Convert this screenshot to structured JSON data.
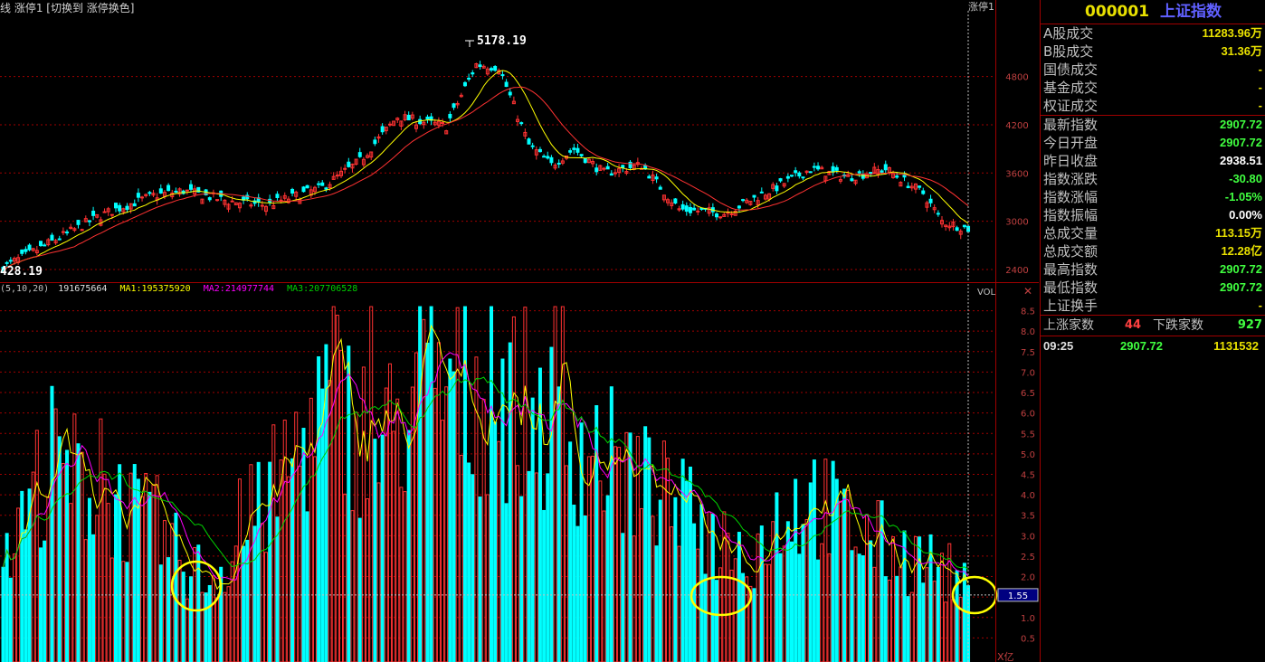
{
  "header": {
    "left_text": "线  涨停1 [切换到 涨停换色]",
    "right_tag": "涨停1"
  },
  "price_chart": {
    "high_label": "5178.19",
    "low_label": "428.19",
    "y_ticks": [
      "4800",
      "4200",
      "3600",
      "3000",
      "2400"
    ]
  },
  "volume_chart": {
    "indicator_text": "(5,10,20)",
    "vol_value": "191675664",
    "ma1_label": "MA1:195375920",
    "ma2_label": "MA2:214977744",
    "ma3_label": "MA3:207706528",
    "vol_tag": "VOL",
    "close_glyph": "✕",
    "unit_label": "X亿",
    "current_value": "1.55",
    "y_ticks": [
      "8.5",
      "8.0",
      "7.5",
      "7.0",
      "6.5",
      "6.0",
      "5.5",
      "5.0",
      "4.5",
      "4.0",
      "3.5",
      "3.0",
      "2.5",
      "2.0",
      "1.5",
      "1.0",
      "0.5"
    ]
  },
  "panel": {
    "code": "000001",
    "name": "上证指数",
    "group1": [
      {
        "label": "A股成交",
        "value": "11283.96万",
        "color": "#e8e000"
      },
      {
        "label": "B股成交",
        "value": "31.36万",
        "color": "#e8e000"
      },
      {
        "label": "国债成交",
        "value": "-",
        "color": "#e8e000"
      },
      {
        "label": "基金成交",
        "value": "-",
        "color": "#e8e000"
      },
      {
        "label": "权证成交",
        "value": "-",
        "color": "#e8e000"
      }
    ],
    "group2": [
      {
        "label": "最新指数",
        "value": "2907.72",
        "color": "#40ff40"
      },
      {
        "label": "今日开盘",
        "value": "2907.72",
        "color": "#40ff40"
      },
      {
        "label": "昨日收盘",
        "value": "2938.51",
        "color": "#ffffff"
      },
      {
        "label": "指数涨跌",
        "value": "-30.80",
        "color": "#40ff40"
      },
      {
        "label": "指数涨幅",
        "value": "-1.05%",
        "color": "#40ff40"
      },
      {
        "label": "指数振幅",
        "value": "0.00%",
        "color": "#ffffff"
      },
      {
        "label": "总成交量",
        "value": "113.15万",
        "color": "#e8e000"
      },
      {
        "label": "总成交额",
        "value": "12.28亿",
        "color": "#e8e000"
      },
      {
        "label": "最高指数",
        "value": "2907.72",
        "color": "#40ff40"
      },
      {
        "label": "最低指数",
        "value": "2907.72",
        "color": "#40ff40"
      },
      {
        "label": "上证换手",
        "value": "-",
        "color": "#e8e000"
      }
    ],
    "up_label": "上涨家数",
    "up_count": "44",
    "down_label": "下跌家数",
    "down_count": "927",
    "tick_time": "09:25",
    "tick_price": "2907.72",
    "tick_volume": "1131532"
  },
  "colors": {
    "up": "#ff3232",
    "down": "#00ffff",
    "ma_yellow": "#ffff00",
    "ma_magenta": "#ff00ff",
    "ma_green": "#00d000",
    "grid": "#a00000",
    "highlight_circle": "#ffff00"
  }
}
